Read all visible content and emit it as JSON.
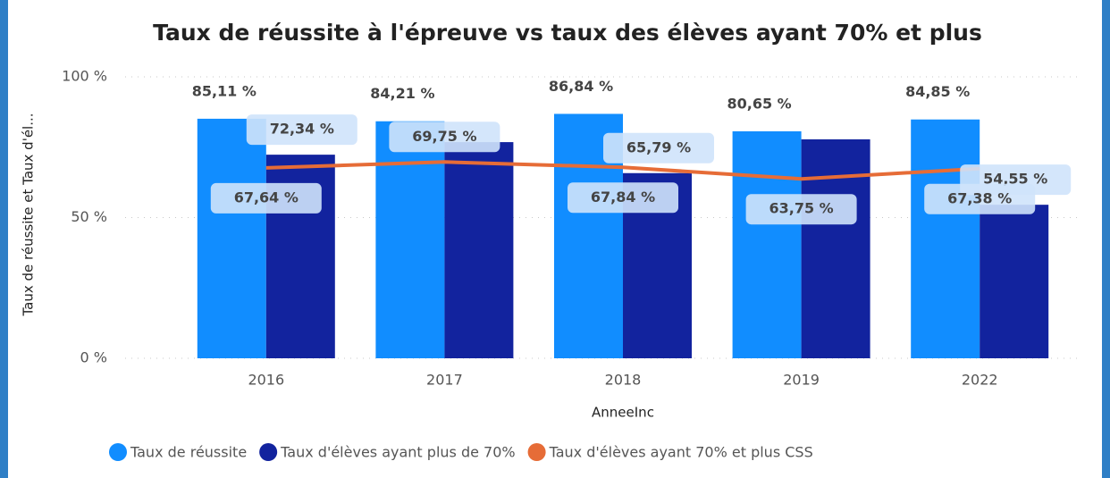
{
  "chart_data": {
    "type": "bar_line",
    "title": "Taux de réussite à l'épreuve vs taux des élèves ayant 70% et plus",
    "x_label": "AnneeInc",
    "y_label": "Taux de réussite et Taux d'él...",
    "categories": [
      "2016",
      "2017",
      "2018",
      "2019",
      "2022"
    ],
    "series": [
      {
        "name": "Taux de réussite",
        "color": "#118dff",
        "kind": "bar",
        "values": [
          85.11,
          84.21,
          86.84,
          80.65,
          84.85
        ],
        "value_labels": [
          "85,11 %",
          "84,21 %",
          "86,84 %",
          "80,65 %",
          "84,85 %"
        ]
      },
      {
        "name": "Taux d'élèves ayant plus de 70%",
        "color": "#12239e",
        "kind": "bar",
        "values": [
          72.34,
          76.8,
          65.79,
          77.8,
          54.55
        ],
        "value_labels": [
          "72,34 %",
          null,
          "65,79 %",
          null,
          "54,55 %"
        ]
      },
      {
        "name": "Taux d'élèves ayant 70% et plus CSS",
        "color": "#e66c37",
        "kind": "line",
        "values": [
          67.64,
          69.75,
          67.84,
          63.75,
          67.38
        ],
        "value_labels": [
          "67,64 %",
          "69,75 %",
          "67,84 %",
          "63,75 %",
          "67,38 %"
        ]
      }
    ],
    "ylim": [
      0,
      100
    ],
    "yticks": [
      {
        "value": 0,
        "label": "0 %"
      },
      {
        "value": 50,
        "label": "50 %"
      },
      {
        "value": 100,
        "label": "100 %"
      }
    ],
    "grid": true,
    "legend": "bottom"
  }
}
